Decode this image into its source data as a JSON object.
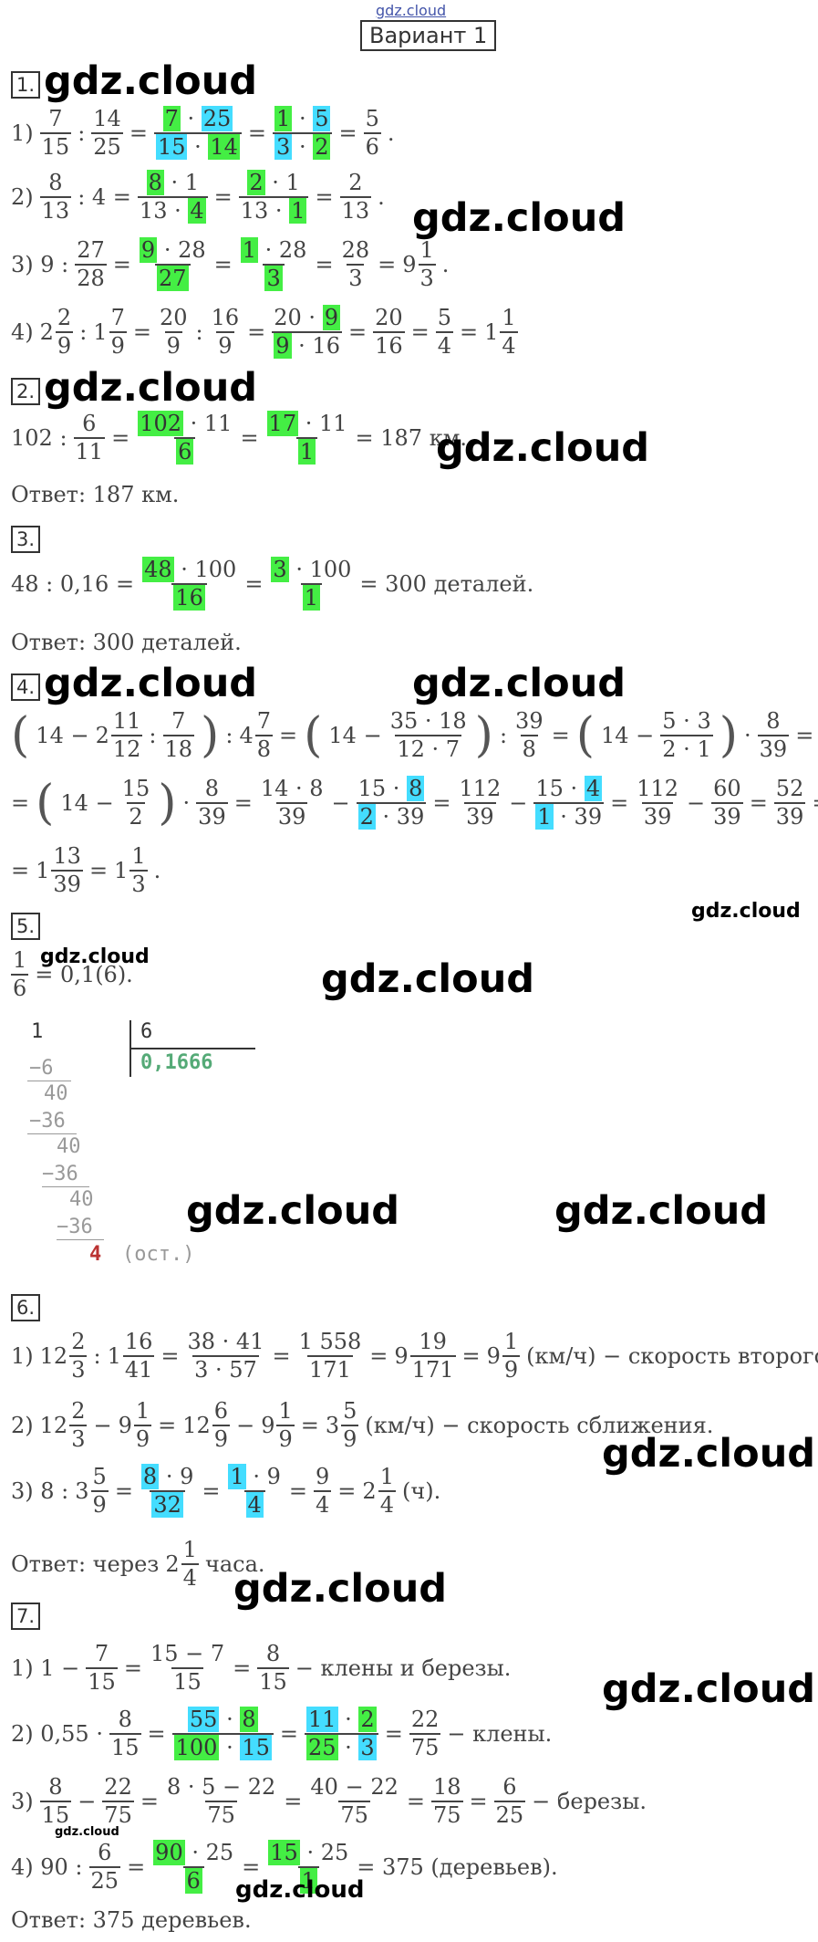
{
  "header": {
    "site_small": "gdz.cloud",
    "variant": "Вариант 1"
  },
  "watermark": "gdz.cloud",
  "tasks": {
    "t1": {
      "num": "1."
    },
    "t2": {
      "num": "2.",
      "answer": "Ответ: 187 км."
    },
    "t3": {
      "num": "3.",
      "answer": "Ответ: 300 деталей."
    },
    "t4": {
      "num": "4."
    },
    "t5": {
      "num": "5.",
      "division": {
        "dividend": "1",
        "divisor": "6",
        "quotient": "0,1666",
        "steps": [
          "−6",
          "40",
          "−36",
          "40",
          "−36",
          "40",
          "−36"
        ],
        "remainder": "4",
        "rem_label": "(ост.)"
      }
    },
    "t6": {
      "num": "6.",
      "answer_pre": "Ответ: через",
      "answer_post": "часа."
    },
    "t7": {
      "num": "7.",
      "answer": "Ответ: 375 деревьев."
    }
  }
}
